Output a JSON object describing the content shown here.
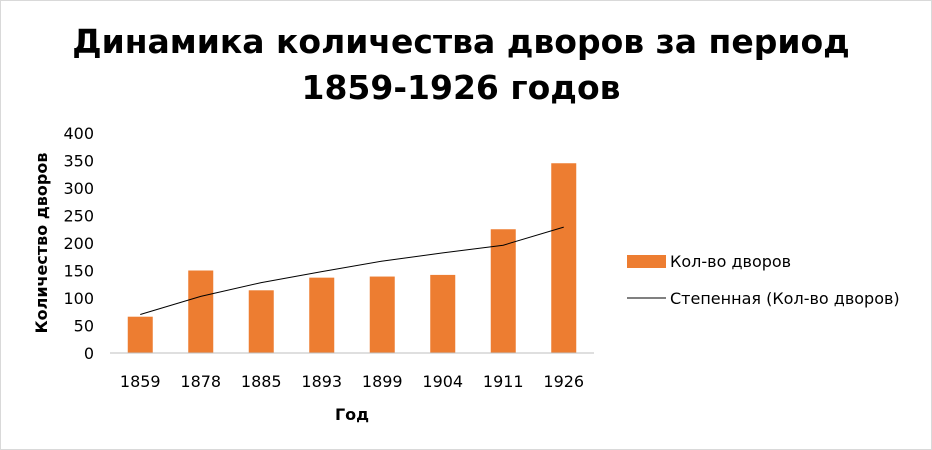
{
  "chart_data": {
    "type": "bar",
    "title_line1": "Динамика количества дворов за период",
    "title_line2": "1859-1926 годов",
    "xlabel": "Год",
    "ylabel": "Количество дворов",
    "categories": [
      "1859",
      "1878",
      "1885",
      "1893",
      "1899",
      "1904",
      "1911",
      "1926"
    ],
    "series": [
      {
        "name": "Кол-во дворов",
        "values": [
          66,
          150,
          114,
          137,
          139,
          142,
          225,
          345
        ],
        "color": "#ED7D31"
      }
    ],
    "trendline": {
      "name": "Степенная (Кол-во дворов)",
      "kind": "power",
      "values": [
        70,
        103,
        128,
        148,
        167,
        182,
        196,
        229
      ],
      "color": "#000000"
    },
    "ylim": [
      0,
      400
    ],
    "yticks": [
      "0",
      "50",
      "100",
      "150",
      "200",
      "250",
      "300",
      "350",
      "400"
    ],
    "grid": false,
    "legend_position": "right"
  }
}
